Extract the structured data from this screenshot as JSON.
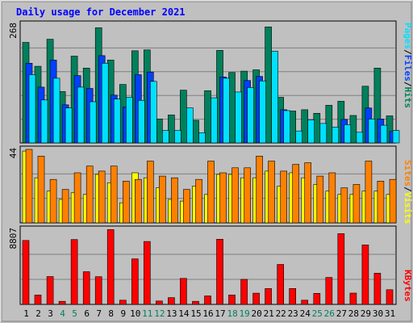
{
  "title": "Daily usage for December 2021",
  "colors": {
    "background": "#c0c0c0",
    "title": "#0000ff",
    "hits": "#00805c",
    "files": "#0040ff",
    "pages": "#00e0ff",
    "visits": "#ffff00",
    "sites": "#ff8000",
    "kbytes": "#ff0000",
    "weekend_day": "#00805c",
    "weekday": "#000000",
    "grid": "#808080"
  },
  "chart_data": [
    {
      "type": "bar",
      "panel": "hits-files-pages",
      "ymax_label": "268",
      "ylim": [
        0,
        268
      ],
      "legend": [
        {
          "key": "pages",
          "label": "Pages"
        },
        {
          "key": "sep1",
          "label": "/"
        },
        {
          "key": "files",
          "label": "Files"
        },
        {
          "key": "sep2",
          "label": "/"
        },
        {
          "key": "hits",
          "label": "Hits"
        }
      ],
      "categories": [
        "1",
        "2",
        "3",
        "4",
        "5",
        "6",
        "7",
        "8",
        "9",
        "10",
        "11",
        "12",
        "13",
        "14",
        "15",
        "16",
        "17",
        "18",
        "19",
        "20",
        "21",
        "22",
        "23",
        "24",
        "25",
        "26",
        "27",
        "28",
        "29",
        "30",
        "31"
      ],
      "series": [
        {
          "name": "Hits",
          "key": "hits",
          "values": [
            227,
            173,
            234,
            116,
            196,
            169,
            260,
            187,
            132,
            208,
            210,
            54,
            63,
            119,
            51,
            118,
            209,
            159,
            162,
            165,
            262,
            103,
            72,
            75,
            67,
            85,
            94,
            62,
            128,
            169,
            61
          ]
        },
        {
          "name": "Files",
          "key": "files",
          "values": [
            180,
            126,
            187,
            86,
            152,
            123,
            197,
            108,
            81,
            154,
            160,
            0,
            0,
            0,
            0,
            0,
            149,
            0,
            141,
            150,
            0,
            75,
            0,
            0,
            0,
            0,
            53,
            0,
            79,
            54,
            26
          ]
        },
        {
          "name": "Pages",
          "key": "pages",
          "values": [
            154,
            97,
            146,
            79,
            126,
            93,
            180,
            99,
            103,
            96,
            139,
            28,
            28,
            79,
            23,
            102,
            146,
            115,
            125,
            140,
            207,
            73,
            27,
            52,
            44,
            36,
            41,
            24,
            54,
            40,
            28
          ]
        }
      ]
    },
    {
      "type": "bar",
      "panel": "visits-sites",
      "ymax_label": "44",
      "ylim": [
        0,
        44
      ],
      "legend": [
        {
          "key": "sites",
          "label": "Sites"
        },
        {
          "key": "sep1",
          "label": "/"
        },
        {
          "key": "visits",
          "label": "Visits"
        }
      ],
      "categories": [
        "1",
        "2",
        "3",
        "4",
        "5",
        "6",
        "7",
        "8",
        "9",
        "10",
        "11",
        "12",
        "13",
        "14",
        "15",
        "16",
        "17",
        "18",
        "19",
        "20",
        "21",
        "22",
        "23",
        "24",
        "25",
        "26",
        "27",
        "28",
        "29",
        "30",
        "31"
      ],
      "series": [
        {
          "name": "Visits",
          "key": "visits",
          "values": [
            43,
            27,
            19,
            14,
            18,
            17,
            29,
            24,
            12,
            30,
            27,
            21,
            14,
            13,
            22,
            17,
            29,
            29,
            27,
            27,
            31,
            22,
            30,
            27,
            23,
            19,
            17,
            17,
            19,
            19,
            17
          ]
        },
        {
          "name": "Sites",
          "key": "sites",
          "values": [
            44,
            40,
            26,
            20,
            30,
            34,
            31,
            34,
            25,
            26,
            37,
            28,
            27,
            20,
            26,
            37,
            30,
            33,
            33,
            40,
            37,
            31,
            35,
            36,
            28,
            30,
            21,
            23,
            37,
            25,
            26
          ]
        }
      ]
    },
    {
      "type": "bar",
      "panel": "kbytes",
      "ymax_label": "8807",
      "ylim": [
        0,
        8807
      ],
      "legend": [
        {
          "key": "kbytes",
          "label": "KBytes"
        }
      ],
      "categories": [
        "1",
        "2",
        "3",
        "4",
        "5",
        "6",
        "7",
        "8",
        "9",
        "10",
        "11",
        "12",
        "13",
        "14",
        "15",
        "16",
        "17",
        "18",
        "19",
        "20",
        "21",
        "22",
        "23",
        "24",
        "25",
        "26",
        "27",
        "28",
        "29",
        "30",
        "31"
      ],
      "series": [
        {
          "name": "KBytes",
          "key": "kbytes",
          "values": [
            7500,
            1100,
            3270,
            360,
            7600,
            3840,
            3250,
            8780,
            490,
            5340,
            7380,
            400,
            800,
            3050,
            360,
            990,
            7640,
            1110,
            2940,
            1320,
            1860,
            4690,
            1870,
            490,
            1300,
            3160,
            8300,
            1330,
            6980,
            3660,
            1720
          ]
        }
      ]
    }
  ],
  "x_axis": {
    "days": [
      "1",
      "2",
      "3",
      "4",
      "5",
      "6",
      "7",
      "8",
      "9",
      "10",
      "11",
      "12",
      "13",
      "14",
      "15",
      "16",
      "17",
      "18",
      "19",
      "20",
      "21",
      "22",
      "23",
      "24",
      "25",
      "26",
      "27",
      "28",
      "29",
      "30",
      "31"
    ],
    "weekend_days": [
      "4",
      "5",
      "11",
      "12",
      "18",
      "19",
      "25",
      "26"
    ]
  }
}
